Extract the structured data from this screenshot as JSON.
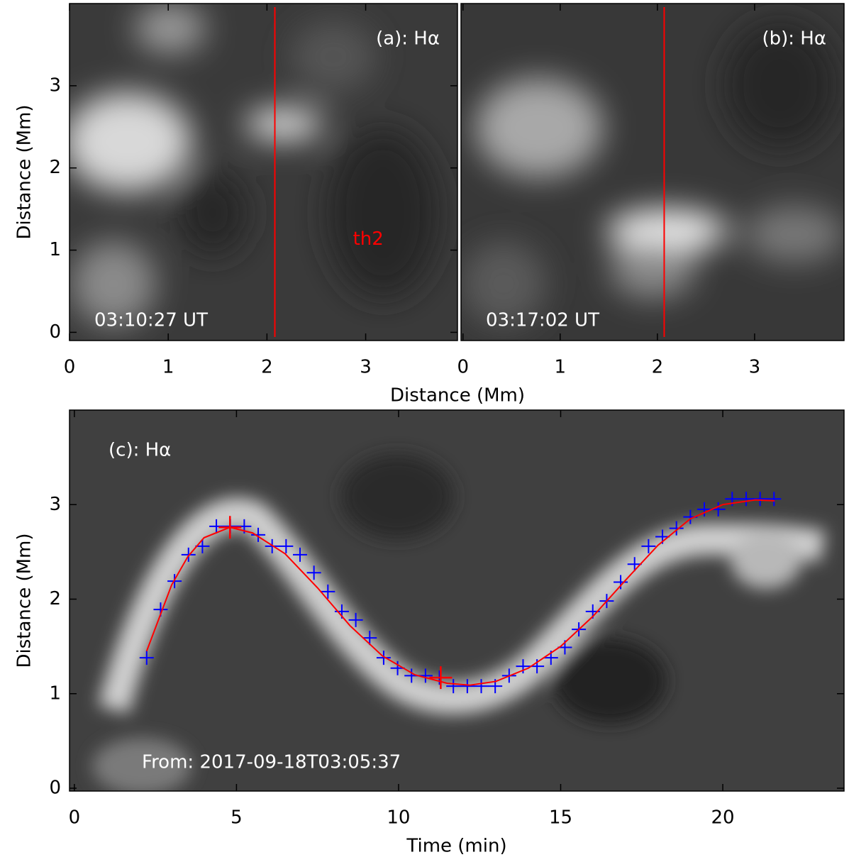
{
  "chart_data": [
    {
      "type": "image",
      "title": "(a): Hα",
      "annotation": "03:10:27 UT",
      "ylabel": "Distance (Mm)",
      "xlabel": "Distance (Mm)",
      "xlim": [
        0,
        3.93
      ],
      "ylim": [
        -0.1,
        4.0
      ],
      "xticks": [
        0,
        1,
        2,
        3
      ],
      "yticks": [
        0,
        1,
        2,
        3
      ],
      "slit_x": 2.08,
      "slit_color": "#ff0000",
      "slit_label": "th2"
    },
    {
      "type": "image",
      "title": "(b): Hα",
      "annotation": "03:17:02 UT",
      "xlim": [
        -0.02,
        3.92
      ],
      "ylim": [
        -0.1,
        4.0
      ],
      "xticks": [
        0,
        1,
        2,
        3
      ],
      "slit_x": 2.07,
      "slit_color": "#ff0000"
    },
    {
      "type": "scatter",
      "title": "(c): Hα",
      "annotation": "From: 2017-09-18T03:05:37",
      "ylabel": "Distance (Mm)",
      "xlabel": "Time (min)",
      "xlim": [
        -0.15,
        23.74
      ],
      "ylim": [
        -0.03,
        4.0
      ],
      "xticks": [
        0,
        5,
        10,
        15,
        20
      ],
      "yticks": [
        0,
        1,
        2,
        3
      ],
      "series": [
        {
          "kind": "marker",
          "color": "#0000ff",
          "x": [
            2.23,
            2.66,
            3.09,
            3.52,
            3.95,
            4.38,
            4.81,
            5.24,
            5.67,
            6.1,
            6.53,
            6.96,
            7.39,
            7.82,
            8.25,
            8.68,
            9.11,
            9.54,
            9.97,
            10.4,
            10.83,
            11.26,
            11.69,
            12.12,
            12.55,
            12.98,
            13.41,
            13.84,
            14.27,
            14.7,
            15.13,
            15.56,
            15.99,
            16.42,
            16.85,
            17.28,
            17.71,
            18.14,
            18.57,
            19.0,
            19.43,
            19.86,
            20.29,
            20.72,
            21.15,
            21.58
          ],
          "values": [
            1.38,
            1.89,
            2.19,
            2.47,
            2.56,
            2.77,
            2.77,
            2.77,
            2.68,
            2.56,
            2.56,
            2.47,
            2.28,
            2.08,
            1.87,
            1.78,
            1.59,
            1.38,
            1.27,
            1.19,
            1.19,
            1.17,
            1.08,
            1.08,
            1.08,
            1.08,
            1.19,
            1.29,
            1.29,
            1.38,
            1.49,
            1.68,
            1.87,
            1.98,
            2.18,
            2.37,
            2.56,
            2.66,
            2.75,
            2.87,
            2.95,
            2.95,
            3.06,
            3.06,
            3.06,
            3.06
          ]
        },
        {
          "kind": "line",
          "color": "#ff0000",
          "x": [
            2.23,
            3,
            3.5,
            4,
            4.8,
            5.5,
            6.5,
            7.5,
            8.5,
            9.5,
            10.5,
            11.5,
            12.2,
            13,
            14,
            15,
            16,
            17,
            18,
            19,
            20,
            21,
            21.6
          ],
          "values": [
            1.45,
            2.15,
            2.45,
            2.65,
            2.76,
            2.7,
            2.48,
            2.12,
            1.72,
            1.4,
            1.2,
            1.11,
            1.09,
            1.13,
            1.27,
            1.5,
            1.82,
            2.2,
            2.57,
            2.85,
            3.0,
            3.05,
            3.04
          ]
        },
        {
          "kind": "big-marker",
          "color": "#ff0000",
          "x": [
            4.8,
            11.3
          ],
          "values": [
            2.76,
            1.17
          ]
        }
      ]
    }
  ]
}
